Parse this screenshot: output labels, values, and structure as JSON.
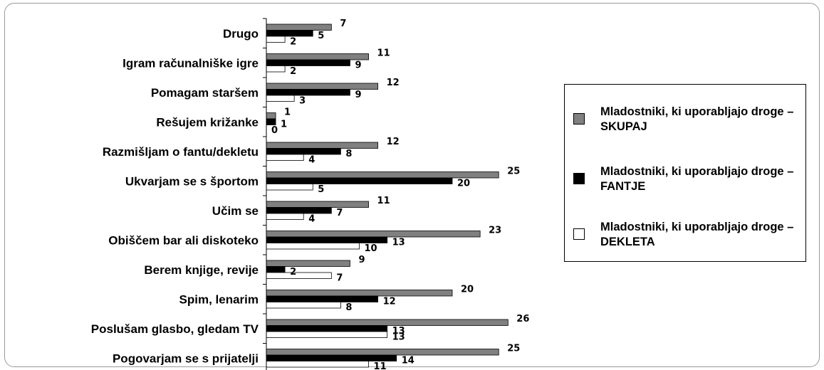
{
  "chart_data": {
    "type": "bar",
    "orientation": "horizontal",
    "categories": [
      "Drugo",
      "Igram računalniške igre",
      "Pomagam staršem",
      "Rešujem križanke",
      "Razmišljam o fantu/dekletu",
      "Ukvarjam se s športom",
      "Učim se",
      "Obiščem bar ali diskoteko",
      "Berem knjige, revije",
      "Spim, lenarim",
      "Poslušam glasbo, gledam TV",
      "Pogovarjam se s prijatelji"
    ],
    "series": [
      {
        "name": "Mladostniki, ki uporabljajo droge – SKUPAJ",
        "color": "#808080",
        "values": [
          7,
          11,
          12,
          1,
          12,
          25,
          11,
          23,
          9,
          20,
          26,
          25
        ]
      },
      {
        "name": "Mladostniki, ki uporabljajo droge – FANTJE",
        "color": "#000000",
        "values": [
          5,
          9,
          9,
          1,
          8,
          20,
          7,
          13,
          2,
          12,
          13,
          14
        ]
      },
      {
        "name": "Mladostniki, ki uporabljajo droge – DEKLETA",
        "color": "#ffffff",
        "values": [
          2,
          2,
          3,
          0,
          4,
          5,
          4,
          10,
          7,
          8,
          13,
          11
        ]
      }
    ],
    "xlim": [
      0,
      26
    ],
    "legend_position": "right",
    "grid": false
  }
}
